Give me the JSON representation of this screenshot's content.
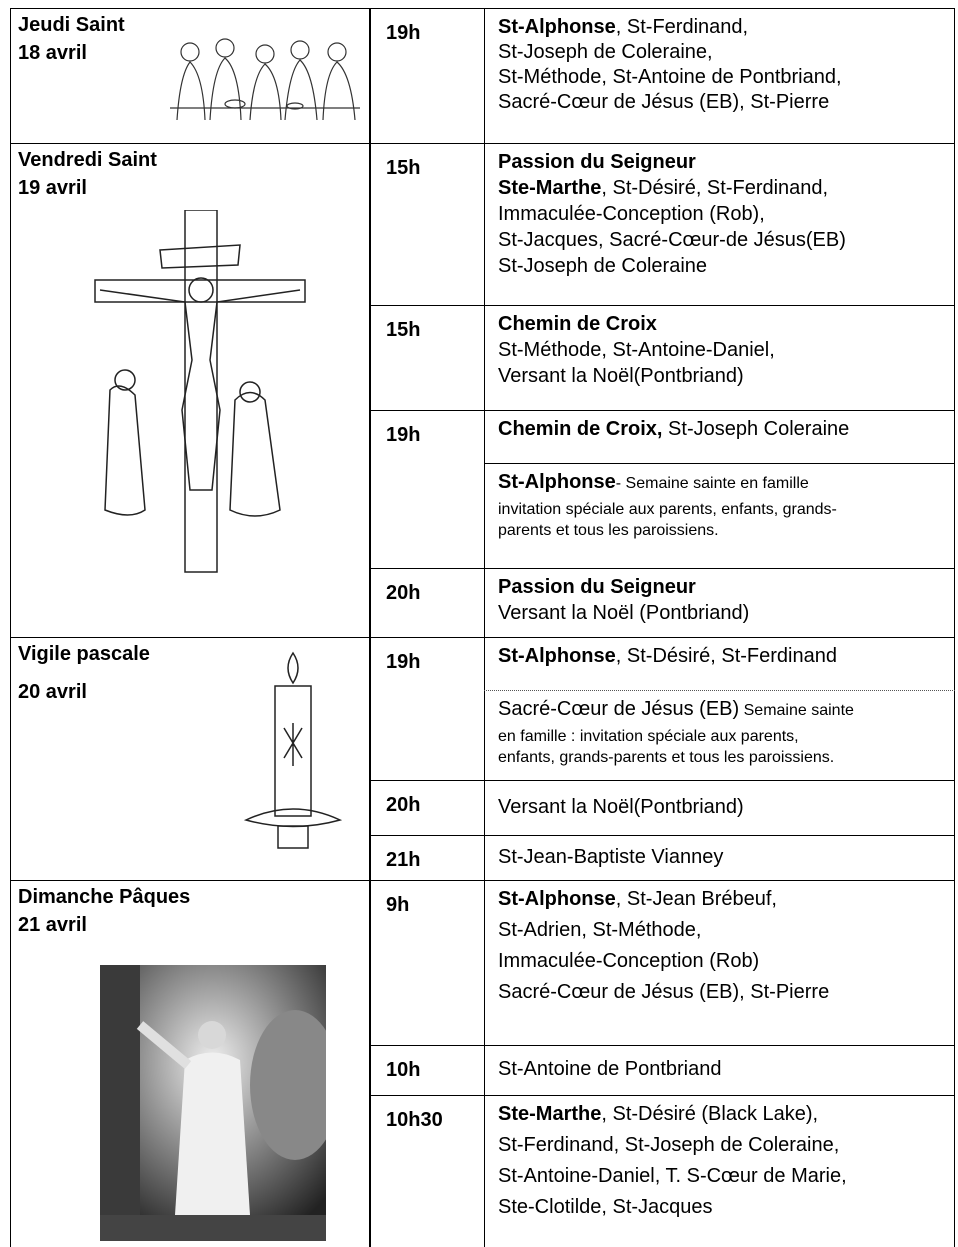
{
  "days": [
    {
      "name": "Jeudi Saint",
      "date": "18 avril",
      "slots": [
        {
          "time": "19h",
          "blocks": [
            {
              "lines": [
                [
                  {
                    "text": "St-Alphonse",
                    "bold": true
                  },
                  {
                    "text": ", St-Ferdinand,"
                  }
                ],
                [
                  {
                    "text": "St-Joseph de Coleraine,"
                  }
                ],
                [
                  {
                    "text": "St-Méthode, St-Antoine de Pontbriand,"
                  }
                ],
                [
                  {
                    "text": "Sacré-Cœur de Jésus (EB), St-Pierre"
                  }
                ]
              ]
            }
          ]
        }
      ]
    },
    {
      "name": "Vendredi  Saint",
      "date": "19 avril",
      "slots": [
        {
          "time": "15h",
          "blocks": [
            {
              "lines": [
                [
                  {
                    "text": "Passion du Seigneur",
                    "bold": true
                  }
                ],
                [
                  {
                    "text": "Ste-Marthe",
                    "bold": true
                  },
                  {
                    "text": ", St-Désiré, St-Ferdinand,"
                  }
                ],
                [
                  {
                    "text": "Immaculée-Conception (Rob),"
                  }
                ],
                [
                  {
                    "text": "St-Jacques, Sacré-Cœur-de Jésus(EB)"
                  }
                ],
                [
                  {
                    "text": "St-Joseph de Coleraine"
                  }
                ]
              ]
            }
          ]
        },
        {
          "time": "15h",
          "blocks": [
            {
              "lines": [
                [
                  {
                    "text": "Chemin de Croix",
                    "bold": true
                  }
                ],
                [
                  {
                    "text": "St-Méthode, St-Antoine-Daniel,"
                  }
                ],
                [
                  {
                    "text": "Versant la Noël(Pontbriand)"
                  }
                ]
              ]
            }
          ]
        },
        {
          "time": "19h",
          "blocks": [
            {
              "lines": [
                [
                  {
                    "text": "Chemin de Croix,",
                    "bold": true
                  },
                  {
                    "text": " St-Joseph Coleraine"
                  }
                ]
              ]
            },
            {
              "lines": [
                [
                  {
                    "text": "St-Alphonse",
                    "bold": true
                  },
                  {
                    "text": "- Semaine sainte en famille",
                    "small": true
                  }
                ],
                [
                  {
                    "text": "invitation spéciale aux parents, enfants, grands-",
                    "small": true
                  }
                ],
                [
                  {
                    "text": "parents et tous les paroissiens.",
                    "small": true
                  }
                ]
              ]
            }
          ]
        },
        {
          "time": "20h",
          "blocks": [
            {
              "lines": [
                [
                  {
                    "text": "Passion du Seigneur",
                    "bold": true
                  }
                ],
                [
                  {
                    "text": "Versant la Noël (Pontbriand)"
                  }
                ]
              ]
            }
          ]
        }
      ]
    },
    {
      "name": "Vigile pascale",
      "date": "20 avril",
      "slots": [
        {
          "time": "19h",
          "blocks": [
            {
              "lines": [
                [
                  {
                    "text": "St-Alphonse",
                    "bold": true
                  },
                  {
                    "text": ", St-Désiré, St-Ferdinand"
                  }
                ]
              ]
            },
            {
              "lines": [
                [
                  {
                    "text": "Sacré-Cœur de Jésus (EB)"
                  },
                  {
                    "text": " Semaine sainte",
                    "small": true
                  }
                ],
                [
                  {
                    "text": "en famille : invitation spéciale aux parents,",
                    "small": true
                  }
                ],
                [
                  {
                    "text": "enfants, grands-parents et tous les paroissiens.",
                    "small": true
                  }
                ]
              ]
            }
          ]
        },
        {
          "time": "20h",
          "blocks": [
            {
              "lines": [
                [
                  {
                    "text": "Versant la Noël(Pontbriand)"
                  }
                ]
              ]
            }
          ]
        },
        {
          "time": "21h",
          "blocks": [
            {
              "lines": [
                [
                  {
                    "text": "St-Jean-Baptiste Vianney"
                  }
                ]
              ]
            }
          ]
        }
      ]
    },
    {
      "name": "Dimanche Pâques",
      "date": "21 avril",
      "slots": [
        {
          "time": "9h",
          "blocks": [
            {
              "lines": [
                [
                  {
                    "text": "St-Alphonse",
                    "bold": true
                  },
                  {
                    "text": ", St-Jean Brébeuf,"
                  }
                ],
                [
                  {
                    "text": "St-Adrien, St-Méthode,"
                  }
                ],
                [
                  {
                    "text": "Immaculée-Conception (Rob)"
                  }
                ],
                [
                  {
                    "text": "Sacré-Cœur de Jésus (EB), St-Pierre"
                  }
                ]
              ]
            }
          ]
        },
        {
          "time": "10h",
          "blocks": [
            {
              "lines": [
                [
                  {
                    "text": "St-Antoine de Pontbriand"
                  }
                ]
              ]
            }
          ]
        },
        {
          "time": "10h30",
          "blocks": [
            {
              "lines": [
                [
                  {
                    "text": "Ste-Marthe",
                    "bold": true
                  },
                  {
                    "text": ", St-Désiré (Black Lake),"
                  }
                ],
                [
                  {
                    "text": "St-Ferdinand, St-Joseph de Coleraine,"
                  }
                ],
                [
                  {
                    "text": "St-Antoine-Daniel, T. S-Cœur de Marie,"
                  }
                ],
                [
                  {
                    "text": "Ste-Clotilde, St-Jacques"
                  }
                ]
              ]
            }
          ]
        }
      ]
    }
  ]
}
